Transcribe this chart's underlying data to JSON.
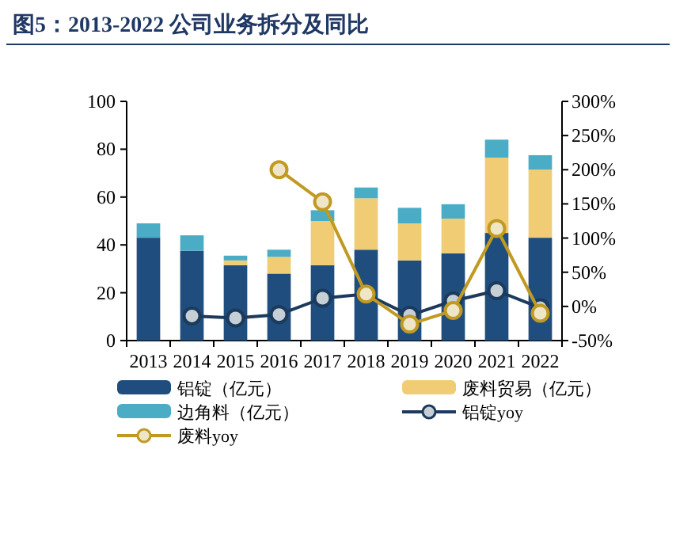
{
  "chart_data": {
    "type": "bar",
    "title": "图5：2013-2022 公司业务拆分及同比",
    "stacked": true,
    "legend": "bottom",
    "grid": false,
    "categories": [
      "2013",
      "2014",
      "2015",
      "2016",
      "2017",
      "2018",
      "2019",
      "2020",
      "2021",
      "2022"
    ],
    "ylim": [
      0,
      100
    ],
    "yticks": [
      0,
      20,
      40,
      60,
      80,
      100
    ],
    "y2lim": [
      -50,
      300
    ],
    "y2ticks": [
      {
        "value": -50,
        "label": "-50%"
      },
      {
        "value": 0,
        "label": "0%"
      },
      {
        "value": 50,
        "label": "50%"
      },
      {
        "value": 100,
        "label": "100%"
      },
      {
        "value": 150,
        "label": "150%"
      },
      {
        "value": 200,
        "label": "200%"
      },
      {
        "value": 250,
        "label": "250%"
      },
      {
        "value": 300,
        "label": "300%"
      }
    ],
    "series": [
      {
        "name": "铝锭（亿元）",
        "color": "#1f4e7e",
        "values": [
          43,
          37.5,
          31.5,
          28,
          31.5,
          38,
          33.5,
          36.5,
          45,
          43
        ]
      },
      {
        "name": "废料贸易（亿元）",
        "color": "#f0cd75",
        "values": [
          0,
          0,
          2,
          7,
          18.5,
          21.5,
          15.5,
          14.5,
          31.5,
          28.5
        ]
      },
      {
        "name": "边角料（亿元）",
        "color": "#4bacc6",
        "values": [
          6,
          6.5,
          2,
          3,
          4.5,
          4.5,
          6.5,
          6,
          7.5,
          6
        ]
      },
      {
        "name": "铝锭yoy",
        "type": "line",
        "axis": "y2",
        "marker": "circle",
        "line_style": "solid",
        "color": "#1b3a5c",
        "values": [
          null,
          -14,
          -17,
          -12,
          12,
          18,
          -13,
          8,
          23,
          -2
        ]
      },
      {
        "name": "废料yoy",
        "type": "line",
        "axis": "y2",
        "marker": "circle",
        "line_style": "solid",
        "color": "#c09a22",
        "values": [
          null,
          null,
          null,
          200,
          153,
          18,
          -26,
          -6,
          114,
          -10
        ]
      }
    ]
  }
}
